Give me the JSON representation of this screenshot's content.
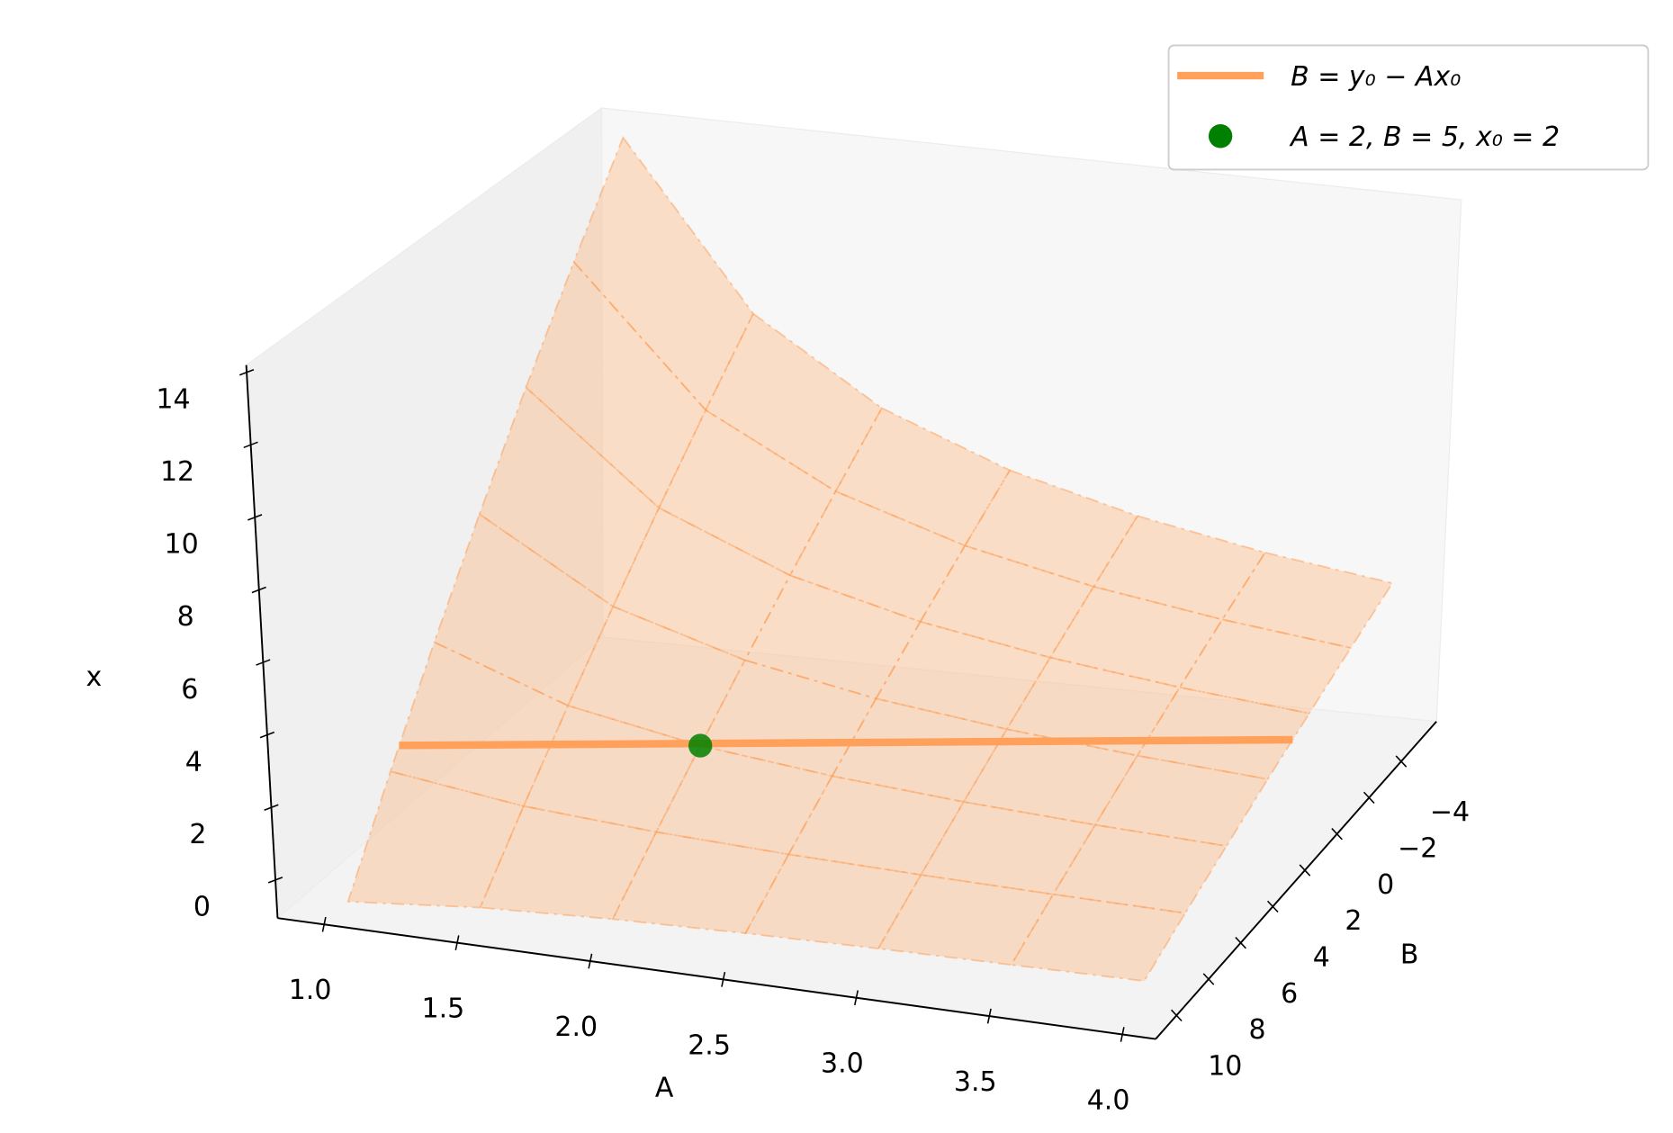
{
  "chart_data": {
    "type": "surface3d",
    "xlabel": "A",
    "ylabel": "B",
    "zlabel": "x",
    "xlim": [
      0.825,
      4.125
    ],
    "ylim": [
      -6.2,
      11.3
    ],
    "zlim": [
      -1.05,
      14.2
    ],
    "xticks": [
      {
        "value": 1,
        "label": "1.0"
      },
      {
        "value": 1.5,
        "label": "1.5"
      },
      {
        "value": 2,
        "label": "2.0"
      },
      {
        "value": 2.5,
        "label": "2.5"
      },
      {
        "value": 3,
        "label": "3.0"
      },
      {
        "value": 3.5,
        "label": "3.5"
      },
      {
        "value": 4,
        "label": "4.0"
      }
    ],
    "yticks": [
      {
        "value": -4,
        "label": "−4"
      },
      {
        "value": -2,
        "label": "−2"
      },
      0,
      2,
      4,
      6,
      8,
      10
    ],
    "zticks": [
      0,
      2,
      4,
      6,
      8,
      10,
      12,
      14
    ],
    "surface": {
      "color": "#ffa15a",
      "x": [
        1,
        1.5,
        2,
        2.5,
        3,
        3.5,
        4
      ],
      "y": [
        -5,
        -2.5,
        0,
        2.5,
        5,
        7.5,
        10
      ],
      "z": [
        [
          14,
          11.5,
          9,
          6.5,
          4,
          1.5,
          -1
        ],
        [
          9.33,
          7.67,
          6,
          4.33,
          2.67,
          1,
          -0.67
        ],
        [
          7,
          5.75,
          4.5,
          3.25,
          2,
          0.75,
          -0.5
        ],
        [
          5.6,
          4.6,
          3.6,
          2.6,
          1.6,
          0.6,
          -0.4
        ],
        [
          4.67,
          3.83,
          3,
          2.17,
          1.33,
          0.5,
          -0.33
        ],
        [
          4,
          3.29,
          2.57,
          1.86,
          1.14,
          0.43,
          -0.29
        ],
        [
          3.5,
          2.88,
          2.25,
          1.63,
          1,
          0.38,
          -0.25
        ]
      ]
    },
    "series": [
      {
        "name": "B = y₀ − Ax₀",
        "type": "line",
        "color": "#ffa15a",
        "x": [
          1,
          4
        ],
        "y": [
          7,
          1
        ],
        "z": [
          2,
          2
        ]
      },
      {
        "name": "A = 2, B = 5, x₀ = 2",
        "type": "scatter",
        "color": "#008000",
        "x": [
          2
        ],
        "y": [
          5
        ],
        "z": [
          2
        ]
      }
    ],
    "legend": "upper right"
  }
}
